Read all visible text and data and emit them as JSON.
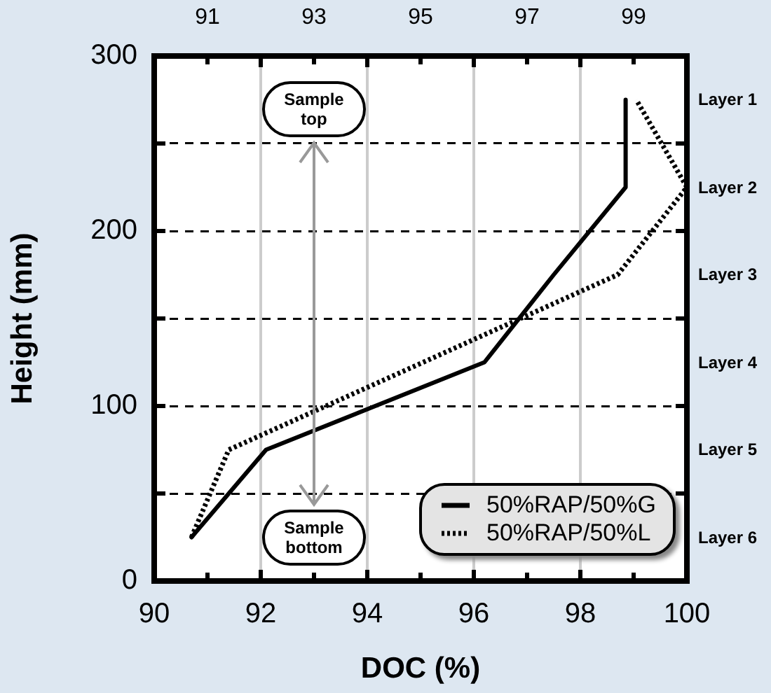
{
  "chart_data": {
    "type": "line",
    "xlabel": "DOC (%)",
    "ylabel": "Height (mm)",
    "xlim": [
      90,
      100
    ],
    "xticks": [
      90,
      92,
      94,
      96,
      98,
      100
    ],
    "x2lim": [
      90,
      100
    ],
    "x2ticks": [
      91,
      93,
      95,
      97,
      99
    ],
    "ylim": [
      0,
      300
    ],
    "yticks": [
      0,
      {
        "value": 50,
        "label": null
      },
      100,
      {
        "value": 150,
        "label": null
      },
      200,
      {
        "value": 250,
        "label": null
      },
      300
    ],
    "grid": true,
    "legend": "bottom right",
    "marker": "none",
    "annotations": [
      "Sample top",
      "Sample bottom",
      "Layer 1",
      "Layer 2",
      "Layer 3",
      "Layer 4",
      "Layer 5",
      "Layer 6"
    ],
    "series": [
      {
        "name": "50%RAP/50%G",
        "color": "#000000",
        "line_style": "solid",
        "x": [
          90.7,
          92.1,
          96.2,
          97.5,
          98.85,
          98.85
        ],
        "values": [
          25,
          75,
          125,
          175,
          225,
          275
        ]
      },
      {
        "name": "50%RAP/50%L",
        "color": "#000000",
        "line_style": "dotted",
        "x": [
          90.7,
          91.4,
          95.05,
          98.7,
          100,
          99.05
        ],
        "values": [
          25,
          75,
          125,
          175,
          225,
          275
        ]
      }
    ]
  }
}
